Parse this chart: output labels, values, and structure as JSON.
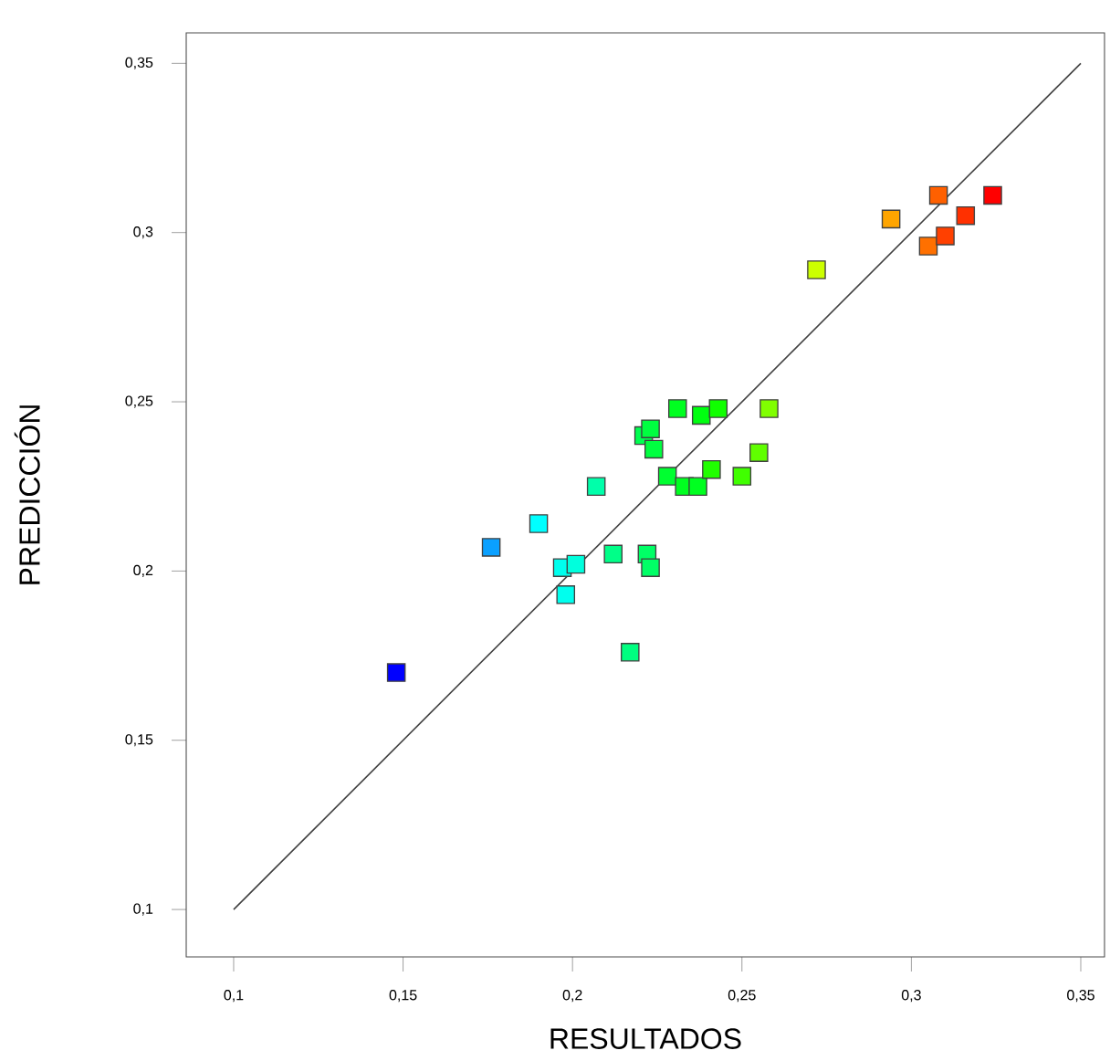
{
  "chart_data": {
    "type": "scatter",
    "xlabel": "RESULTADOS",
    "ylabel": "PREDICCIÓN",
    "marker": "square",
    "xlim": [
      0.086,
      0.357
    ],
    "ylim": [
      0.086,
      0.359
    ],
    "xticks": [
      {
        "value": 0.1,
        "label": "0,1"
      },
      {
        "value": 0.15,
        "label": "0,15"
      },
      {
        "value": 0.2,
        "label": "0,2"
      },
      {
        "value": 0.25,
        "label": "0,25"
      },
      {
        "value": 0.3,
        "label": "0,3"
      },
      {
        "value": 0.35,
        "label": "0,35"
      }
    ],
    "yticks": [
      {
        "value": 0.1,
        "label": "0,1"
      },
      {
        "value": 0.15,
        "label": "0,15"
      },
      {
        "value": 0.2,
        "label": "0,2"
      },
      {
        "value": 0.25,
        "label": "0,25"
      },
      {
        "value": 0.3,
        "label": "0,3"
      },
      {
        "value": 0.35,
        "label": "0,35"
      }
    ],
    "series": [
      {
        "type": "line",
        "marker": "none",
        "color": "#404040",
        "x": [
          0.1,
          0.35
        ],
        "values": [
          0.1,
          0.35
        ]
      },
      {
        "x": [
          0.148,
          0.176,
          0.19,
          0.197,
          0.201,
          0.198,
          0.207,
          0.212,
          0.222,
          0.223,
          0.217,
          0.221,
          0.223,
          0.224,
          0.231,
          0.238,
          0.243,
          0.228,
          0.233,
          0.237,
          0.241,
          0.25,
          0.255,
          0.258,
          0.272,
          0.294,
          0.308,
          0.305,
          0.31,
          0.316,
          0.324
        ],
        "values": [
          0.17,
          0.207,
          0.214,
          0.201,
          0.202,
          0.193,
          0.225,
          0.205,
          0.205,
          0.201,
          0.176,
          0.24,
          0.242,
          0.236,
          0.248,
          0.246,
          0.248,
          0.228,
          0.225,
          0.225,
          0.23,
          0.228,
          0.235,
          0.248,
          0.289,
          0.304,
          0.311,
          0.296,
          0.299,
          0.305,
          0.311
        ],
        "colors": [
          "#0000ff",
          "#0aa0ff",
          "#00ffff",
          "#00ffee",
          "#00ffdd",
          "#00ffee",
          "#00ffaa",
          "#00ff88",
          "#00ff66",
          "#00ff66",
          "#00ff80",
          "#00ff50",
          "#00ff40",
          "#00ff40",
          "#00ff20",
          "#00ff10",
          "#10ff00",
          "#00ff30",
          "#00ff20",
          "#00ff20",
          "#20ff00",
          "#40ff00",
          "#60ff00",
          "#80ff00",
          "#ccff00",
          "#ffa500",
          "#ff6000",
          "#ff7000",
          "#ff4000",
          "#ff3000",
          "#ff0000"
        ]
      }
    ]
  }
}
